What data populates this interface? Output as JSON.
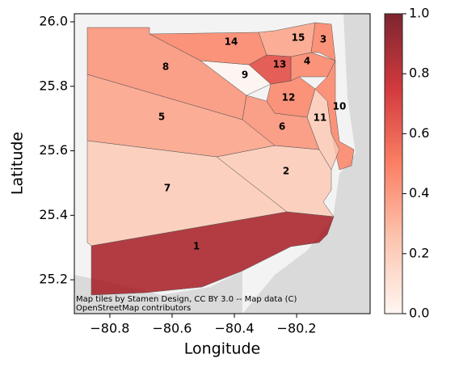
{
  "chart_data": {
    "type": "choropleth",
    "xlabel": "Longitude",
    "ylabel": "Latitude",
    "xlim": [
      -80.914,
      -79.964
    ],
    "xticks": [
      {
        "value": -80.8,
        "label": "−80.8"
      },
      {
        "value": -80.6,
        "label": "−80.6"
      },
      {
        "value": -80.4,
        "label": "−80.4"
      },
      {
        "value": -80.2,
        "label": "−80.2"
      }
    ],
    "ylim": [
      25.095,
      26.025
    ],
    "yticks": [
      {
        "value": 25.2,
        "label": "25.2"
      },
      {
        "value": 25.4,
        "label": "25.4"
      },
      {
        "value": 25.6,
        "label": "25.6"
      },
      {
        "value": 25.8,
        "label": "25.8"
      },
      {
        "value": 26.0,
        "label": "26.0"
      }
    ],
    "colormap": "Reds",
    "regions": [
      {
        "name": "1",
        "value": 0.85
      },
      {
        "name": "2",
        "value": 0.2
      },
      {
        "name": "3",
        "value": 0.45
      },
      {
        "name": "4",
        "value": 0.45
      },
      {
        "name": "5",
        "value": 0.35
      },
      {
        "name": "6",
        "value": 0.4
      },
      {
        "name": "7",
        "value": 0.2
      },
      {
        "name": "8",
        "value": 0.4
      },
      {
        "name": "9",
        "value": 0.0
      },
      {
        "name": "10",
        "value": 0.45
      },
      {
        "name": "11",
        "value": 0.2
      },
      {
        "name": "12",
        "value": 0.45
      },
      {
        "name": "13",
        "value": 0.65
      },
      {
        "name": "14",
        "value": 0.45
      },
      {
        "name": "15",
        "value": 0.35
      }
    ],
    "colorbar": {
      "lim": [
        0,
        1
      ],
      "ticks": [
        {
          "value": 0,
          "label": "0.0"
        },
        {
          "value": 0.2,
          "label": "0.2"
        },
        {
          "value": 0.4,
          "label": "0.4"
        },
        {
          "value": 0.6,
          "label": "0.6"
        },
        {
          "value": 0.8,
          "label": "0.8"
        },
        {
          "value": 1,
          "label": "1.0"
        }
      ]
    },
    "attribution": [
      "Map tiles by Stamen Design, CC BY 3.0 -- Map data (C)",
      "OpenStreetMap contributors"
    ]
  }
}
